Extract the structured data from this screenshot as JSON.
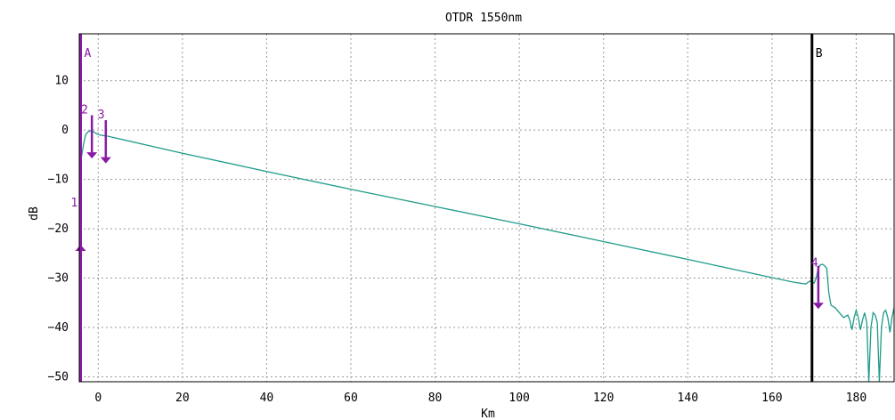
{
  "chart_data": {
    "type": "line",
    "title": "OTDR 1550nm",
    "xlabel": "Km",
    "ylabel": "dB",
    "xlim": [
      -4.5,
      189
    ],
    "ylim": [
      -51,
      19.5
    ],
    "x_ticks": [
      0,
      20,
      40,
      60,
      80,
      100,
      120,
      140,
      160,
      180
    ],
    "x_tick_labels": [
      "0",
      "20",
      "40",
      "60",
      "80",
      "100",
      "120",
      "140",
      "160",
      "180"
    ],
    "y_ticks": [
      10,
      0,
      -10,
      -20,
      -30,
      -40,
      -50
    ],
    "y_tick_labels": [
      "10",
      "0",
      "−10",
      "−20",
      "−30",
      "−40",
      "−50"
    ],
    "grid": true,
    "series": [
      {
        "color": "#1f9b8a",
        "points": [
          [
            -4.5,
            -6
          ],
          [
            -4,
            -5.5
          ],
          [
            -3.5,
            -3
          ],
          [
            -3,
            -1
          ],
          [
            -2.5,
            -0.4
          ],
          [
            -2,
            -0.2
          ],
          [
            -1.5,
            -0.2
          ],
          [
            -1,
            -0.4
          ],
          [
            -0.5,
            -0.7
          ],
          [
            0,
            -0.9
          ],
          [
            0.5,
            -1.0
          ],
          [
            1,
            -1.1
          ],
          [
            2,
            -1.2
          ],
          [
            3,
            -1.4
          ],
          [
            20,
            -4.7
          ],
          [
            40,
            -8.4
          ],
          [
            60,
            -12.0
          ],
          [
            80,
            -15.5
          ],
          [
            100,
            -19.0
          ],
          [
            120,
            -22.6
          ],
          [
            140,
            -26.2
          ],
          [
            160,
            -29.9
          ],
          [
            165,
            -30.8
          ],
          [
            168,
            -31.2
          ],
          [
            169,
            -30.6
          ],
          [
            170,
            -31.0
          ],
          [
            170.5,
            -30.0
          ],
          [
            171,
            -28.0
          ],
          [
            171.5,
            -27.3
          ],
          [
            172,
            -27.2
          ],
          [
            172.5,
            -27.5
          ],
          [
            173,
            -28.0
          ],
          [
            173.5,
            -33.0
          ],
          [
            174,
            -35.5
          ],
          [
            175,
            -36.0
          ],
          [
            176,
            -37.0
          ],
          [
            177,
            -38.0
          ],
          [
            178,
            -37.5
          ],
          [
            178.5,
            -38.5
          ],
          [
            179,
            -40.5
          ],
          [
            179.5,
            -38.0
          ],
          [
            180,
            -36.5
          ],
          [
            180.5,
            -38.0
          ],
          [
            181,
            -40.5
          ],
          [
            181.5,
            -38.5
          ],
          [
            182,
            -37.0
          ],
          [
            182.5,
            -39.0
          ],
          [
            183,
            -51.0
          ],
          [
            183.5,
            -40.0
          ],
          [
            184,
            -37.0
          ],
          [
            184.5,
            -37.5
          ],
          [
            185,
            -39.0
          ],
          [
            185.5,
            -51.0
          ],
          [
            186,
            -40.0
          ],
          [
            186.5,
            -37.0
          ],
          [
            187,
            -36.5
          ],
          [
            187.5,
            -38.0
          ],
          [
            188,
            -41.0
          ],
          [
            188.5,
            -38.0
          ],
          [
            189,
            -36.0
          ]
        ]
      }
    ],
    "cursors": [
      {
        "label": "A",
        "x": -4.5,
        "color": "#8a1aa6"
      },
      {
        "label": "B",
        "x": 169.5,
        "color": "#000000"
      }
    ],
    "events": [
      {
        "label": "1",
        "x": -4.5,
        "y_top": -24.5,
        "y_bottom": -51,
        "color": "#8a1aa6"
      },
      {
        "label": "2",
        "x": -1.5,
        "y_top": 3.0,
        "y_bottom": -4.5,
        "color": "#8a1aa6"
      },
      {
        "label": "3",
        "x": 1.8,
        "y_top": 2.0,
        "y_bottom": -5.5,
        "color": "#8a1aa6"
      },
      {
        "label": "4",
        "x": 171.0,
        "y_top": -27.5,
        "y_bottom": -35.0,
        "color": "#8a1aa6"
      }
    ]
  }
}
